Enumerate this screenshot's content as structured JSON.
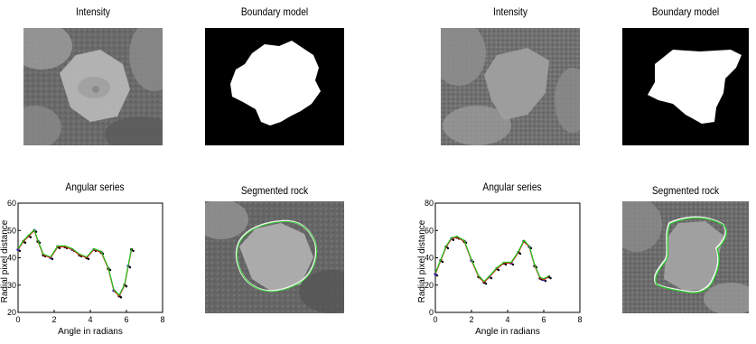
{
  "panels": [
    {
      "intensity_title": "Intensity",
      "boundary_title": "Boundary model",
      "series_title": "Angular series",
      "segmented_title": "Segmented rock",
      "chart_data": {
        "type": "scatter",
        "title": "Angular series",
        "xlabel": "Angle in radians",
        "ylabel": "Radial pixel distance",
        "xlim": [
          0,
          8
        ],
        "ylim": [
          20,
          60
        ],
        "xticks": [
          "0",
          "2",
          "4",
          "6",
          "8"
        ],
        "yticks": [
          "20",
          "30",
          "40",
          "50",
          "60"
        ],
        "colors": {
          "points_blue": "#1f1fd0",
          "points_black": "#000000",
          "fit_red": "#e01010",
          "fit_green": "#1ec81e"
        },
        "series": [
          {
            "values_x": [
              0,
              0.3,
              0.6,
              0.9,
              1.1,
              1.4,
              1.8,
              2.2,
              2.6,
              3.0,
              3.4,
              3.8,
              4.2,
              4.6,
              5.0,
              5.3,
              5.6,
              5.9,
              6.1,
              6.28
            ],
            "values_y": [
              43,
              46,
              48,
              50,
              46,
              41,
              40,
              44,
              44,
              43,
              41,
              40,
              43,
              42,
              36,
              28,
              26,
              30,
              37,
              43
            ]
          }
        ]
      }
    },
    {
      "intensity_title": "Intensity",
      "boundary_title": "Boundary model",
      "series_title": "Angular series",
      "segmented_title": "Segmented rock",
      "chart_data": {
        "type": "scatter",
        "title": "Angular series",
        "xlabel": "Angle in radians",
        "ylabel": "Radial pixel distance",
        "xlim": [
          0,
          8
        ],
        "ylim": [
          0,
          80
        ],
        "xticks": [
          "0",
          "2",
          "4",
          "6",
          "8"
        ],
        "yticks": [
          "0",
          "20",
          "40",
          "60",
          "80"
        ],
        "colors": {
          "points_blue": "#1f1fd0",
          "points_black": "#000000",
          "fit_red": "#e01010",
          "fit_green": "#1ec81e"
        },
        "series": [
          {
            "values_x": [
              0,
              0.3,
              0.6,
              0.9,
              1.2,
              1.6,
              2.0,
              2.4,
              2.7,
              3.0,
              3.4,
              3.8,
              4.2,
              4.6,
              4.9,
              5.2,
              5.5,
              5.8,
              6.0,
              6.28
            ],
            "values_y": [
              28,
              38,
              48,
              54,
              55,
              52,
              38,
              26,
              22,
              26,
              32,
              36,
              36,
              44,
              52,
              48,
              34,
              25,
              24,
              26
            ]
          }
        ]
      }
    }
  ]
}
